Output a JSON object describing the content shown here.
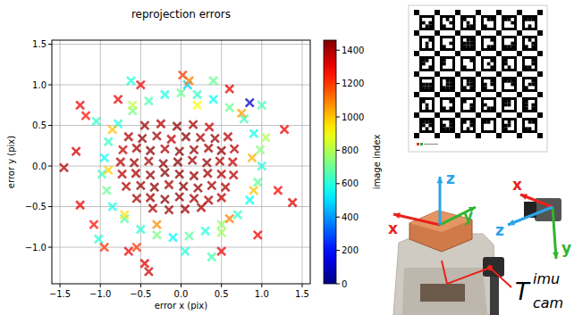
{
  "chart_data": {
    "type": "scatter",
    "title": "reprojection errors",
    "x_label": "error x (pix)",
    "y_label": "error y (pix)",
    "xlim": [
      -1.6,
      1.6
    ],
    "ylim": [
      -1.45,
      1.55
    ],
    "xticks": [
      {
        "value": -1.5,
        "label": "−1.5"
      },
      {
        "value": -1,
        "label": "−1.0"
      },
      {
        "value": -0.5,
        "label": "−0.5"
      },
      {
        "value": 0,
        "label": "0.0"
      },
      {
        "value": 0.5,
        "label": "0.5"
      },
      {
        "value": 1,
        "label": "1.0"
      },
      {
        "value": 1.5,
        "label": "1.5"
      }
    ],
    "yticks": [
      {
        "value": -1,
        "label": "−1.0"
      },
      {
        "value": -0.5,
        "label": "−0.5"
      },
      {
        "value": 0,
        "label": "0.0"
      },
      {
        "value": 0.5,
        "label": "0.5"
      },
      {
        "value": 1,
        "label": "1.0"
      },
      {
        "value": 1.5,
        "label": "1.5"
      }
    ],
    "grid": true,
    "marker": "x",
    "x": [
      -0.9,
      -0.95,
      -0.98,
      -0.92,
      -0.85,
      -0.7,
      -0.5,
      -0.3,
      -0.1,
      0.1,
      0.3,
      0.5,
      0.7,
      0.85,
      0.95,
      1.0,
      0.98,
      0.9,
      0.78,
      0.6,
      0.4,
      0.2,
      0.0,
      -0.2,
      -0.4,
      -0.6,
      -0.78,
      -0.6,
      0.5,
      1.05,
      -0.62,
      -1.02,
      -1.05,
      0.05,
      0.38,
      1.0,
      0.4,
      0.08,
      0.85,
      -0.85,
      0.75,
      -0.7,
      0.6,
      0.88,
      -0.9,
      0.2,
      -0.3,
      0.9,
      -1.25,
      -1.18,
      -1.3,
      -1.45,
      -1.25,
      1.38,
      1.2,
      1.28,
      -0.5,
      0.02,
      0.1,
      0.6,
      -0.78,
      -0.95,
      -0.65,
      -0.45,
      -0.4,
      0.5,
      0.95,
      -1.08,
      -0.55,
      -0.45,
      -0.25,
      -0.05,
      0.15,
      0.35,
      -0.65,
      -0.48,
      -0.3,
      -0.12,
      0.06,
      0.24,
      0.42,
      0.58,
      -0.72,
      -0.55,
      -0.38,
      -0.2,
      -0.02,
      0.16,
      0.34,
      0.5,
      0.66,
      -0.75,
      -0.58,
      -0.4,
      -0.22,
      -0.04,
      0.14,
      0.32,
      0.48,
      0.64,
      -0.73,
      -0.56,
      -0.38,
      -0.2,
      -0.02,
      0.16,
      0.33,
      0.5,
      0.65,
      -0.68,
      -0.5,
      -0.33,
      -0.15,
      0.03,
      0.21,
      0.38,
      0.55,
      -0.55,
      -0.38,
      -0.2,
      -0.02,
      0.16,
      0.34,
      0.5,
      -0.35,
      -0.15,
      0.05,
      0.25
    ],
    "values": [
      0.3,
      0.1,
      -0.1,
      -0.3,
      -0.5,
      -0.65,
      -0.78,
      -0.85,
      -0.88,
      -0.86,
      -0.8,
      -0.72,
      -0.6,
      -0.42,
      -0.2,
      0.0,
      0.2,
      0.4,
      0.58,
      0.72,
      0.82,
      0.88,
      0.9,
      0.88,
      0.8,
      0.68,
      0.52,
      0.75,
      -0.82,
      0.35,
      1.05,
      -0.9,
      0.55,
      -1.05,
      -1.12,
      0.75,
      1.05,
      1.0,
      0.78,
      0.45,
      0.65,
      -0.6,
      -0.65,
      0.1,
      -0.05,
      0.75,
      -0.72,
      -0.3,
      0.75,
      0.62,
      0.18,
      -0.02,
      -0.48,
      -0.45,
      -0.3,
      0.45,
      1.0,
      1.12,
      1.05,
      0.95,
      0.82,
      -1.0,
      -1.05,
      -1.2,
      -1.3,
      -1.05,
      -0.85,
      -0.72,
      -1.0,
      0.5,
      0.52,
      0.49,
      0.51,
      0.48,
      0.36,
      0.34,
      0.37,
      0.33,
      0.36,
      0.35,
      0.34,
      0.36,
      0.2,
      0.22,
      0.19,
      0.21,
      0.18,
      0.2,
      0.22,
      0.19,
      0.21,
      0.05,
      0.04,
      0.06,
      0.03,
      0.05,
      0.07,
      0.04,
      0.06,
      0.05,
      -0.1,
      -0.09,
      -0.11,
      -0.08,
      -0.1,
      -0.12,
      -0.09,
      -0.1,
      -0.11,
      -0.25,
      -0.24,
      -0.26,
      -0.23,
      -0.25,
      -0.27,
      -0.24,
      -0.26,
      -0.4,
      -0.39,
      -0.41,
      -0.38,
      -0.4,
      -0.42,
      -0.39,
      -0.52,
      -0.54,
      -0.53,
      -0.51
    ],
    "image_index": [
      620,
      560,
      640,
      700,
      580,
      660,
      600,
      720,
      540,
      680,
      600,
      760,
      620,
      560,
      690,
      600,
      740,
      580,
      650,
      700,
      560,
      630,
      700,
      590,
      660,
      720,
      600,
      820,
      780,
      800,
      600,
      600,
      620,
      600,
      650,
      650,
      700,
      480,
      100,
      1000,
      1050,
      950,
      1100,
      1020,
      980,
      900,
      1080,
      1000,
      1300,
      1250,
      1350,
      1380,
      1300,
      1320,
      1280,
      1300,
      1300,
      1200,
      1100,
      1320,
      1300,
      1200,
      1300,
      1320,
      1350,
      1300,
      1300,
      1250,
      1200,
      1420,
      1380,
      1440,
      1400,
      1360,
      1390,
      1430,
      1410,
      1370,
      1445,
      1400,
      1420,
      1380,
      1360,
      1410,
      1440,
      1390,
      1450,
      1420,
      1400,
      1430,
      1370,
      1380,
      1420,
      1400,
      1440,
      1450,
      1410,
      1430,
      1390,
      1360,
      1370,
      1400,
      1430,
      1450,
      1440,
      1420,
      1410,
      1390,
      1380,
      1380,
      1420,
      1440,
      1400,
      1450,
      1430,
      1410,
      1390,
      1400,
      1420,
      1440,
      1430,
      1410,
      1390,
      1370,
      1380,
      1420,
      1410,
      1400
    ],
    "colorbar": {
      "label": "image index",
      "range": [
        0,
        1460
      ],
      "ticks": [
        0,
        200,
        400,
        600,
        800,
        1000,
        1200,
        1400
      ]
    }
  },
  "diagram": {
    "imu_axes": [
      "x",
      "y",
      "z"
    ],
    "camera_axes": [
      "x",
      "y",
      "z"
    ],
    "transform": {
      "symbol": "T",
      "superscript": "imu",
      "subscript": "cam"
    }
  }
}
